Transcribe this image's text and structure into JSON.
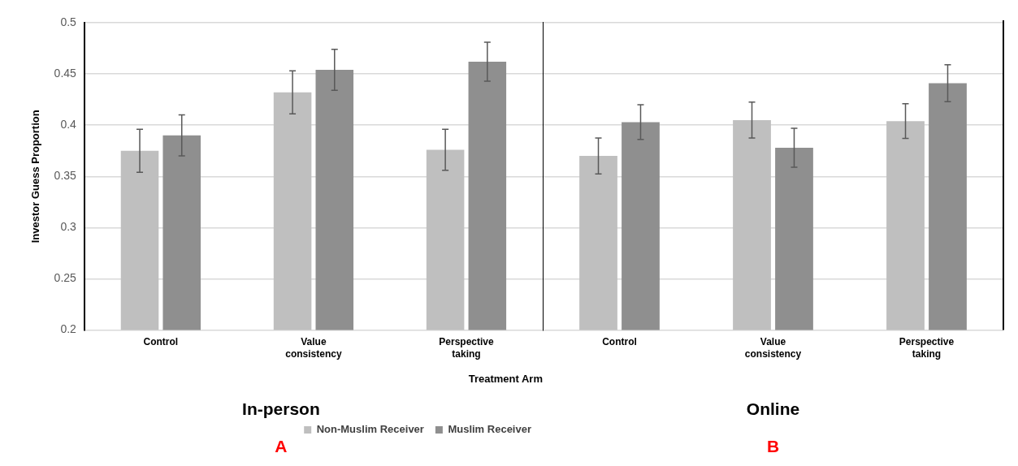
{
  "chart_data": [
    {
      "type": "bar",
      "xlabel": "Treatment Arm",
      "ylabel": "Investor Guess Proportion",
      "categories": [
        "Control",
        "Value consistency",
        "Perspective taking"
      ],
      "series": [
        {
          "name": "Non-Muslim Receiver",
          "color": "#bfbfbf",
          "values": [
            0.375,
            0.432,
            0.376
          ],
          "errors": [
            0.021,
            0.021,
            0.02
          ]
        },
        {
          "name": "Muslim Receiver",
          "color": "#8f8f8f",
          "values": [
            0.39,
            0.454,
            0.462
          ],
          "errors": [
            0.02,
            0.02,
            0.019
          ]
        }
      ],
      "ylim": [
        0.2,
        0.5
      ],
      "yticks": [
        0.2,
        0.25,
        0.3,
        0.35,
        0.4,
        0.45,
        0.5
      ],
      "grid": "y",
      "legend": "bottom",
      "annotations": [
        "In-person",
        "A"
      ]
    },
    {
      "type": "bar",
      "categories": [
        "Control",
        "Value consistency",
        "Perspective taking"
      ],
      "series": [
        {
          "color": "#bfbfbf",
          "values": [
            0.37,
            0.405,
            0.404
          ],
          "errors": [
            0.0175,
            0.0175,
            0.017
          ]
        },
        {
          "color": "#8f8f8f",
          "values": [
            0.403,
            0.378,
            0.441
          ],
          "errors": [
            0.017,
            0.019,
            0.018
          ]
        }
      ],
      "ylim": [
        0.2,
        0.5
      ],
      "yticks": [
        0.2,
        0.25,
        0.3,
        0.35,
        0.4,
        0.45,
        0.5
      ],
      "grid": "y",
      "tick_labels": "x",
      "annotations": [
        "Online",
        "B"
      ]
    }
  ]
}
